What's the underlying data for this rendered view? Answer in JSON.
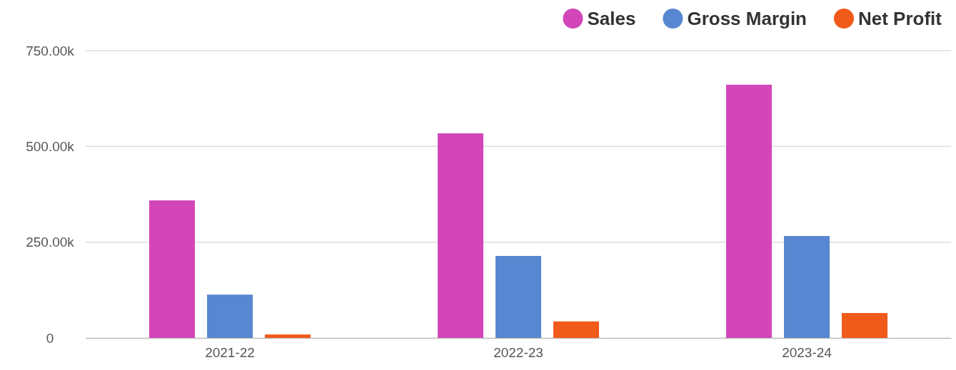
{
  "chart_data": {
    "type": "bar",
    "categories": [
      "2021-22",
      "2022-23",
      "2023-24"
    ],
    "series": [
      {
        "name": "Sales",
        "color": "#d246b8",
        "values": [
          359000,
          534000,
          661000
        ]
      },
      {
        "name": "Gross Margin",
        "color": "#5787d0",
        "values": [
          113000,
          214000,
          266000
        ]
      },
      {
        "name": "Net Profit",
        "color": "#f05a1a",
        "values": [
          9000,
          43000,
          65000
        ]
      }
    ],
    "ylim": [
      0,
      750000
    ],
    "yticks": [
      {
        "value": 0,
        "label": "0"
      },
      {
        "value": 250000,
        "label": "250.00k"
      },
      {
        "value": 500000,
        "label": "500.00k"
      },
      {
        "value": 750000,
        "label": "750.00k"
      }
    ],
    "grid": "y",
    "legend": "top right"
  }
}
